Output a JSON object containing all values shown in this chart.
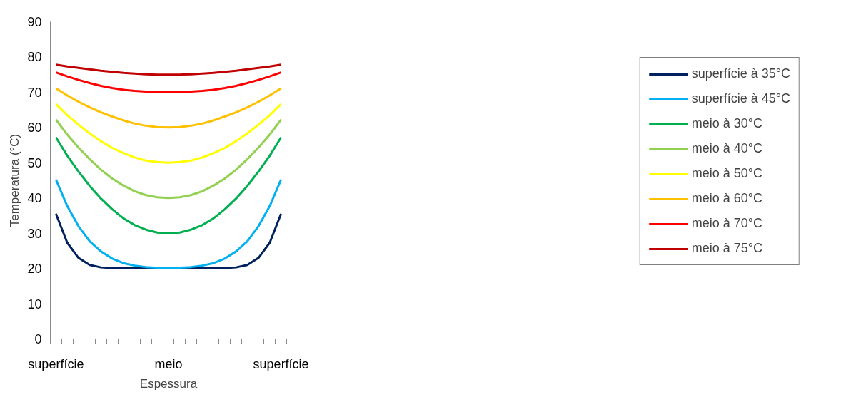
{
  "chart_data": {
    "type": "line",
    "xlabel": "Espessura",
    "ylabel": "Temperatura (°C)",
    "categories": [
      "superfície",
      null,
      null,
      null,
      null,
      null,
      null,
      null,
      null,
      null,
      "meio",
      null,
      null,
      null,
      null,
      null,
      null,
      null,
      null,
      null,
      "superfície"
    ],
    "ylim": [
      0,
      90
    ],
    "yticks": [
      0,
      10,
      20,
      30,
      40,
      50,
      60,
      70,
      80,
      90
    ],
    "grid": false,
    "legend": "right",
    "series": [
      {
        "name": "superfície à 35°C",
        "color": "#002060",
        "values": [
          35.5,
          27.3,
          23,
          21,
          20.3,
          20.1,
          20,
          20,
          20,
          20,
          20,
          20,
          20,
          20,
          20,
          20.1,
          20.3,
          21,
          23,
          27.3,
          35.5
        ]
      },
      {
        "name": "superfície à 45°C",
        "color": "#00b0f0",
        "values": [
          45.2,
          37.7,
          32,
          27.7,
          24.8,
          22.8,
          21.5,
          20.8,
          20.4,
          20.2,
          20.1,
          20.2,
          20.4,
          20.8,
          21.5,
          22.8,
          24.8,
          27.7,
          32,
          37.7,
          45.2
        ]
      },
      {
        "name": "meio à 30°C",
        "color": "#00b050",
        "values": [
          57.2,
          52,
          47.5,
          43.4,
          39.8,
          36.8,
          34.2,
          32.3,
          31,
          30.2,
          30,
          30.2,
          31,
          32.3,
          34.2,
          36.8,
          39.8,
          43.4,
          47.5,
          52,
          57.2
        ]
      },
      {
        "name": "meio à 40°C",
        "color": "#92d050",
        "values": [
          62.2,
          58,
          54.3,
          51,
          48,
          45.5,
          43.5,
          41.9,
          40.8,
          40.2,
          40,
          40.2,
          40.8,
          41.9,
          43.5,
          45.5,
          48,
          51,
          54.3,
          58,
          62.2
        ]
      },
      {
        "name": "meio à 50°C",
        "color": "#ffff00",
        "values": [
          66.6,
          63.5,
          60.8,
          58.3,
          56.1,
          54.2,
          52.7,
          51.5,
          50.6,
          50.2,
          50,
          50.2,
          50.6,
          51.5,
          52.7,
          54.2,
          56.1,
          58.3,
          60.8,
          63.5,
          66.6
        ]
      },
      {
        "name": "meio à 60°C",
        "color": "#ffc000",
        "values": [
          71.1,
          69.1,
          67.3,
          65.7,
          64.3,
          63.1,
          62,
          61.1,
          60.5,
          60.1,
          60,
          60.1,
          60.5,
          61.1,
          62,
          63.1,
          64.3,
          65.7,
          67.3,
          69.1,
          71.1
        ]
      },
      {
        "name": "meio à 70°C",
        "color": "#ff0000",
        "values": [
          75.6,
          74.5,
          73.5,
          72.6,
          71.8,
          71.2,
          70.7,
          70.4,
          70.2,
          70,
          70,
          70,
          70.2,
          70.4,
          70.7,
          71.2,
          71.8,
          72.6,
          73.5,
          74.5,
          75.6
        ]
      },
      {
        "name": "meio à 75°C",
        "color": "#c00000",
        "values": [
          77.8,
          77.3,
          76.9,
          76.5,
          76.1,
          75.8,
          75.5,
          75.3,
          75.1,
          75,
          75,
          75,
          75.1,
          75.3,
          75.5,
          75.8,
          76.1,
          76.5,
          76.9,
          77.3,
          77.8
        ]
      }
    ]
  }
}
